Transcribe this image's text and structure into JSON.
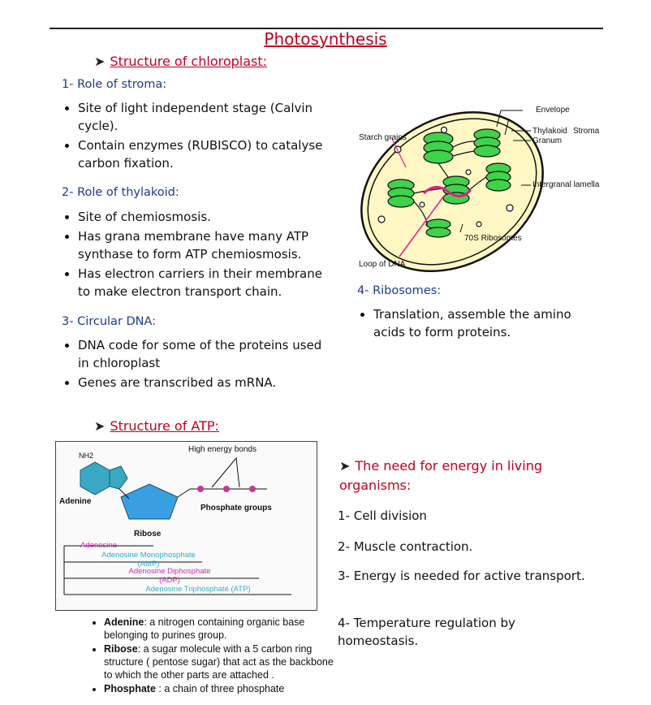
{
  "title": "Photosynthesis",
  "chloroplast_heading": "Structure of chloroplast:",
  "stroma": {
    "heading": "1- Role of stroma:",
    "bullets": [
      "Site of light independent stage (Calvin cycle).",
      "Contain enzymes (RUBISCO) to catalyse carbon fixation."
    ]
  },
  "thylakoid": {
    "heading": "2- Role of thylakoid:",
    "bullets": [
      "Site of chemiosmosis.",
      "Has grana membrane have many ATP synthase to form ATP chemiosmosis.",
      "Has electron carriers in their membrane to make electron transport chain."
    ]
  },
  "dna": {
    "heading": "3- Circular DNA:",
    "bullets": [
      "DNA code for some of the proteins used in chloroplast",
      "Genes are transcribed as mRNA."
    ]
  },
  "ribosomes": {
    "heading": "4- Ribosomes:",
    "bullets": [
      "Translation, assemble the amino acids to form proteins."
    ]
  },
  "chloroplast_diagram": {
    "labels": {
      "envelope": "Envelope",
      "stroma": "Stroma",
      "starch": "Starch grains",
      "thylakoid": "Thylakoid",
      "granum": "Granum",
      "lamella": "Intergranal lamella",
      "ribosomes": "70S Ribosomes",
      "loop": "Loop of DNA"
    },
    "colors": {
      "grana": "#3fd24a",
      "envelope_fill": "#fff7c4",
      "dna": "#e81c8c"
    }
  },
  "atp_heading": "Structure of ATP:",
  "atp_diagram": {
    "high_energy": "High energy bonds",
    "adenine": "Adenine",
    "nh2": "NH2",
    "ribose": "Ribose",
    "phosphate_groups": "Phosphate groups",
    "adenosine": "Adenosine",
    "amp": "Adenosine Monophosphate (AMP)",
    "adp": "Adenosine Diphosphate (ADP)",
    "atp": "Adenosine Triphosphate (ATP)",
    "colors": {
      "adenine": "#3aa8c4",
      "ribose": "#3a9fe0",
      "phosphate": "#c03a9a",
      "amp_text": "#2ab0c8",
      "adp_text": "#d02ab0"
    }
  },
  "atp_list": [
    {
      "term": "Adenine",
      "desc": ": a nitrogen containing organic base belonging to purines group."
    },
    {
      "term": "Ribose",
      "desc": ": a sugar molecule with a 5 carbon ring structure ( pentose sugar) that act as the backbone to which the other parts are attached ."
    },
    {
      "term": "Phosphate",
      "desc": " : a chain of three phosphate"
    }
  ],
  "need": {
    "heading": "The need for energy in living organisms:",
    "items": [
      "1- Cell division",
      "2- Muscle contraction.",
      "3- Energy is needed for active transport.",
      "4- Temperature regulation by homeostasis."
    ]
  }
}
